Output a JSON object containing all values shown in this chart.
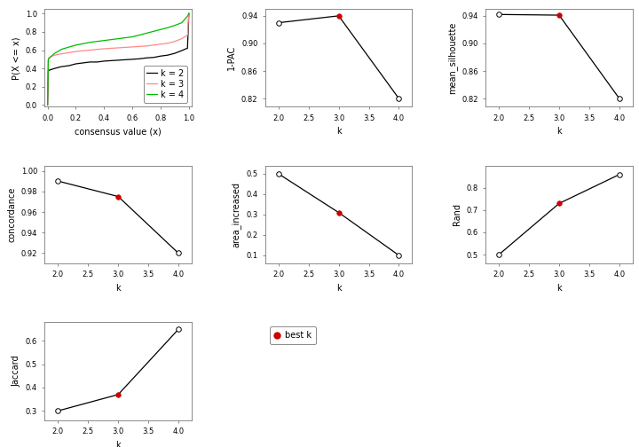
{
  "ecdf_k2": {
    "x": [
      0.0,
      0.005,
      0.01,
      0.05,
      0.1,
      0.15,
      0.2,
      0.25,
      0.3,
      0.35,
      0.4,
      0.45,
      0.5,
      0.55,
      0.6,
      0.65,
      0.7,
      0.75,
      0.8,
      0.85,
      0.9,
      0.95,
      0.98,
      0.99,
      1.0
    ],
    "y": [
      0.0,
      0.37,
      0.38,
      0.4,
      0.42,
      0.43,
      0.45,
      0.46,
      0.47,
      0.47,
      0.48,
      0.485,
      0.49,
      0.495,
      0.5,
      0.505,
      0.515,
      0.52,
      0.535,
      0.545,
      0.565,
      0.595,
      0.615,
      0.62,
      1.0
    ]
  },
  "ecdf_k3": {
    "x": [
      0.0,
      0.005,
      0.01,
      0.05,
      0.1,
      0.2,
      0.3,
      0.4,
      0.5,
      0.6,
      0.65,
      0.7,
      0.75,
      0.8,
      0.85,
      0.9,
      0.95,
      0.98,
      0.99,
      1.0
    ],
    "y": [
      0.0,
      0.5,
      0.52,
      0.545,
      0.56,
      0.585,
      0.6,
      0.615,
      0.625,
      0.635,
      0.64,
      0.645,
      0.655,
      0.665,
      0.675,
      0.695,
      0.725,
      0.755,
      0.76,
      1.0
    ]
  },
  "ecdf_k4": {
    "x": [
      0.0,
      0.005,
      0.01,
      0.05,
      0.1,
      0.2,
      0.3,
      0.4,
      0.5,
      0.6,
      0.65,
      0.7,
      0.75,
      0.8,
      0.85,
      0.9,
      0.95,
      0.99,
      1.0
    ],
    "y": [
      0.0,
      0.49,
      0.51,
      0.565,
      0.61,
      0.655,
      0.685,
      0.705,
      0.725,
      0.745,
      0.765,
      0.785,
      0.805,
      0.825,
      0.845,
      0.87,
      0.9,
      0.97,
      1.0
    ]
  },
  "ecdf_colors": {
    "k2": "#000000",
    "k3": "#ff8888",
    "k4": "#00bb00"
  },
  "metric_k": [
    2,
    3,
    4
  ],
  "pac_values": [
    0.93,
    0.94,
    0.82
  ],
  "silhouette_values": [
    0.942,
    0.941,
    0.82
  ],
  "concordance_values": [
    0.99,
    0.975,
    0.92
  ],
  "area_increased_values": [
    0.5,
    0.31,
    0.1
  ],
  "rand_values": [
    0.5,
    0.73,
    0.86
  ],
  "jaccard_values": [
    0.3,
    0.37,
    0.65
  ],
  "best_k": 3,
  "line_color": "#000000",
  "open_circle_facecolor": "#ffffff",
  "closed_circle_color": "#cc0000",
  "open_circle_edgecolor": "#000000",
  "marker_size": 4,
  "axis_label_fontsize": 7,
  "tick_fontsize": 6,
  "legend_fontsize": 7,
  "background_color": "#ffffff"
}
